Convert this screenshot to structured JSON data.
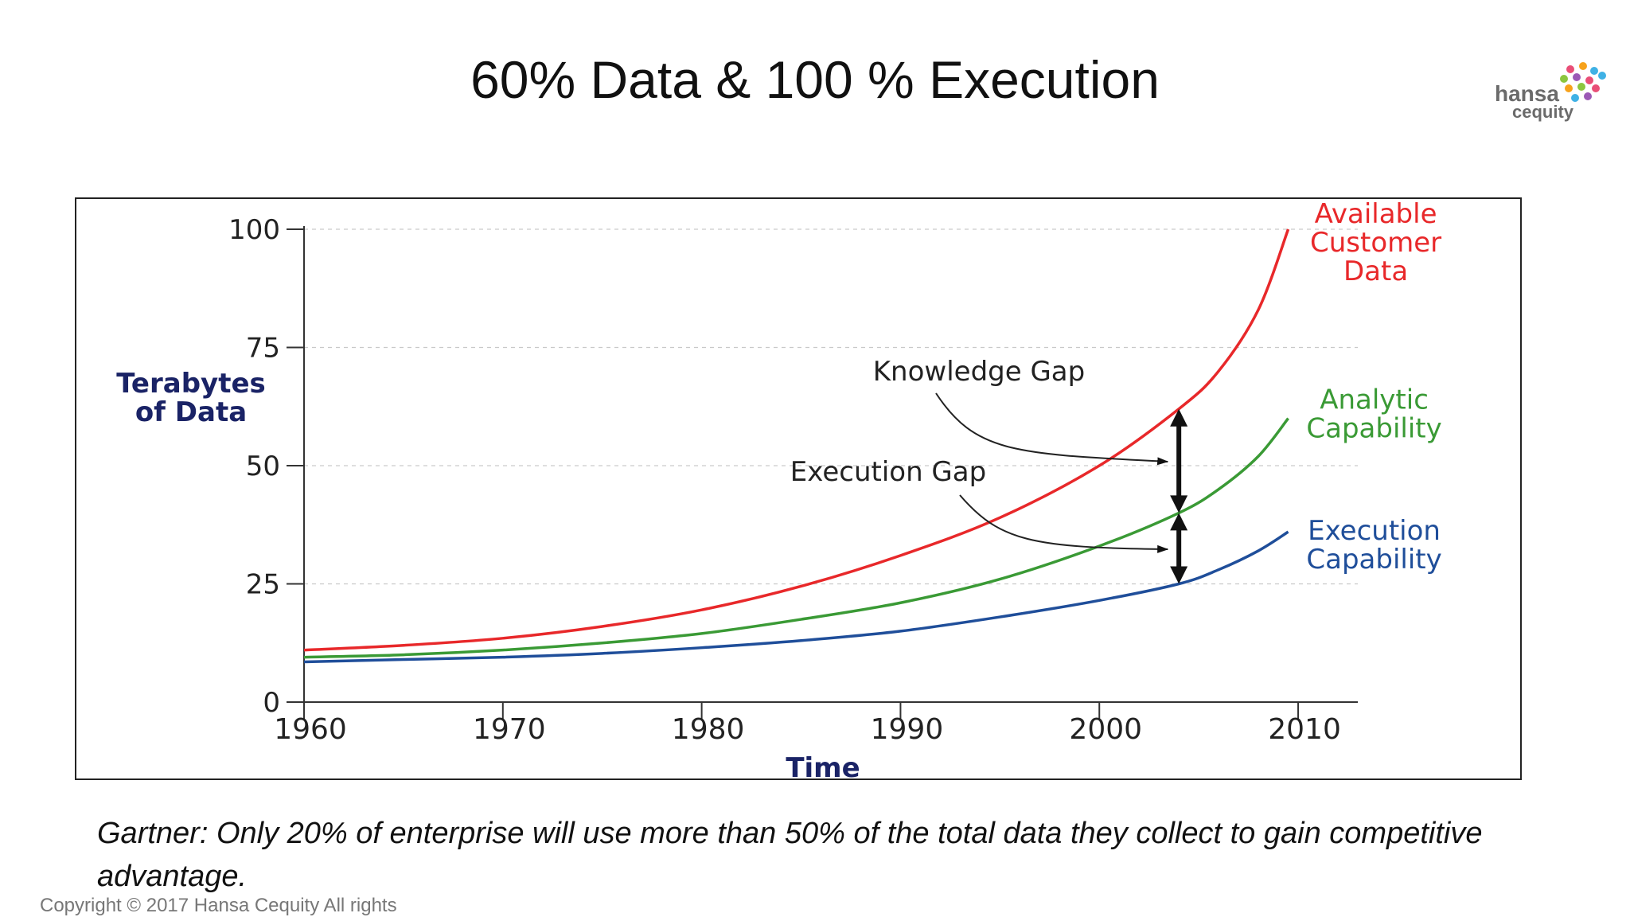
{
  "slide": {
    "title": "60% Data & 100 % Execution",
    "caption": "Gartner: Only 20% of enterprise will use more than 50% of the total data they collect to gain competitive advantage.",
    "copyright": "Copyright © 2017 Hansa Cequity  All rights"
  },
  "logo": {
    "brand": "hansa",
    "sub": "cequity",
    "dot_colors": [
      "#e94e77",
      "#f7a21b",
      "#3fb1e5",
      "#8cc63f",
      "#9b59b6",
      "#e94e77",
      "#3fb1e5",
      "#f7a21b",
      "#8cc63f",
      "#e94e77",
      "#3fb1e5",
      "#9b59b6"
    ]
  },
  "chart_data": {
    "type": "line",
    "xlabel": "Time",
    "ylabel": [
      "Terabytes",
      "of Data"
    ],
    "xlim": [
      1960,
      2013
    ],
    "ylim": [
      0,
      100
    ],
    "xticks": [
      1960,
      1970,
      1980,
      1990,
      2000,
      2010
    ],
    "yticks": [
      0,
      25,
      50,
      75,
      100
    ],
    "grid": "horizontal dashed",
    "series": [
      {
        "name": "Available Customer Data",
        "label_lines": [
          "Available",
          "Customer",
          "Data"
        ],
        "color": "#e8282a",
        "x": [
          1960,
          1965,
          1970,
          1975,
          1980,
          1985,
          1990,
          1995,
          2000,
          2004,
          2006,
          2008,
          2009.5
        ],
        "y": [
          11,
          12,
          13.5,
          16,
          19.5,
          24.5,
          31,
          39,
          50,
          62,
          70,
          83,
          100
        ]
      },
      {
        "name": "Analytic Capability",
        "label_lines": [
          "Analytic",
          "Capability"
        ],
        "color": "#3a9a35",
        "x": [
          1960,
          1965,
          1970,
          1975,
          1980,
          1985,
          1990,
          1995,
          2000,
          2004,
          2006,
          2008,
          2009.5
        ],
        "y": [
          9.5,
          10,
          11,
          12.5,
          14.5,
          17.5,
          21,
          26,
          33,
          40,
          45,
          52,
          60
        ]
      },
      {
        "name": "Execution Capability",
        "label_lines": [
          "Execution",
          "Capability"
        ],
        "color": "#1f4e9a",
        "x": [
          1960,
          1965,
          1970,
          1975,
          1980,
          1985,
          1990,
          1995,
          2000,
          2004,
          2006,
          2008,
          2009.5
        ],
        "y": [
          8.5,
          9,
          9.5,
          10.3,
          11.5,
          13,
          15,
          18,
          21.5,
          25,
          28,
          32,
          36
        ]
      }
    ],
    "annotations": [
      {
        "text": "Knowledge Gap",
        "x": 2004,
        "from": 40,
        "to": 62
      },
      {
        "text": "Execution Gap",
        "x": 2004,
        "from": 25,
        "to": 40
      }
    ]
  }
}
